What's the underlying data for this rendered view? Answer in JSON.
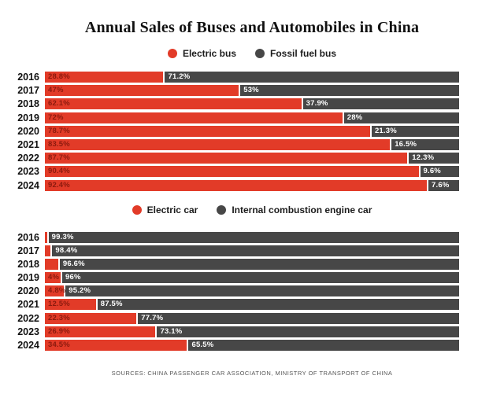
{
  "title": "Annual Sales of Buses and Automobiles in China",
  "footer": {
    "sources": "SOURCES: CHINA PASSENGER CAR ASSOCIATION, MINISTRY OF TRANSPORT OF CHINA"
  },
  "colors": {
    "electric_red": "#e23b28",
    "fossil_gray": "#474747",
    "label_on_red": "#8c1a0e",
    "label_on_gray": "#ffffff"
  },
  "chart_data": [
    {
      "type": "bar",
      "orientation": "horizontal",
      "stacked": true,
      "xlim": [
        0,
        100
      ],
      "grid": false,
      "legend_position": "top",
      "legend": [
        {
          "name": "Electric bus",
          "color": "#e23b28"
        },
        {
          "name": "Fossil fuel bus",
          "color": "#474747"
        }
      ],
      "categories": [
        "2016",
        "2017",
        "2018",
        "2019",
        "2020",
        "2021",
        "2022",
        "2023",
        "2024"
      ],
      "series": [
        {
          "name": "Electric bus",
          "values": [
            28.8,
            47,
            62.1,
            72,
            78.7,
            83.5,
            87.7,
            90.4,
            92.4
          ],
          "labels": [
            "28.8%",
            "47%",
            "62.1%",
            "72%",
            "78.7%",
            "83.5%",
            "87.7%",
            "90.4%",
            "92.4%"
          ]
        },
        {
          "name": "Fossil fuel bus",
          "values": [
            71.2,
            53,
            37.9,
            28,
            21.3,
            16.5,
            12.3,
            9.6,
            7.6
          ],
          "labels": [
            "71.2%",
            "53%",
            "37.9%",
            "28%",
            "21.3%",
            "16.5%",
            "12.3%",
            "9.6%",
            "7.6%"
          ]
        }
      ]
    },
    {
      "type": "bar",
      "orientation": "horizontal",
      "stacked": true,
      "xlim": [
        0,
        100
      ],
      "grid": false,
      "legend_position": "top",
      "legend": [
        {
          "name": "Electric car",
          "color": "#e23b28"
        },
        {
          "name": "Internal combustion engine car",
          "color": "#474747"
        }
      ],
      "categories": [
        "2016",
        "2017",
        "2018",
        "2019",
        "2020",
        "2021",
        "2022",
        "2023",
        "2024"
      ],
      "series": [
        {
          "name": "Electric car",
          "values": [
            0.7,
            1.6,
            3.4,
            4,
            4.8,
            12.5,
            22.3,
            26.9,
            34.5
          ],
          "labels": [
            "",
            "",
            "",
            "4%",
            "4.8%",
            "12.5%",
            "22.3%",
            "26.9%",
            "34.5%"
          ]
        },
        {
          "name": "Internal combustion engine car",
          "values": [
            99.3,
            98.4,
            96.6,
            96,
            95.2,
            87.5,
            77.7,
            73.1,
            65.5
          ],
          "labels": [
            "99.3%",
            "98.4%",
            "96.6%",
            "96%",
            "95.2%",
            "87.5%",
            "77.7%",
            "73.1%",
            "65.5%"
          ]
        }
      ]
    }
  ]
}
